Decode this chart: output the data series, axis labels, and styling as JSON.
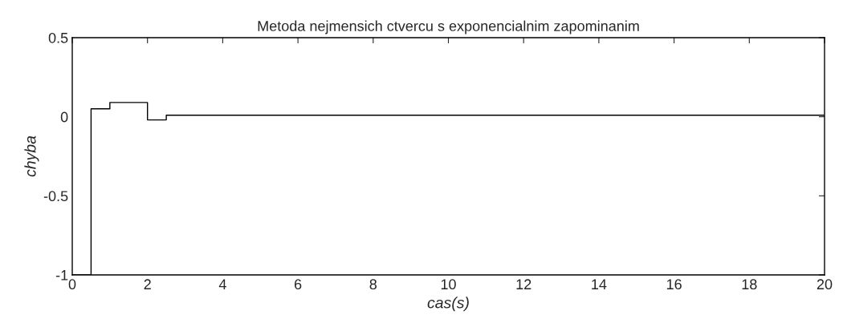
{
  "chart_data": {
    "type": "step",
    "title": "Metoda nejmensich ctvercu s exponencialnim zapominanim",
    "xlabel": "cas(s)",
    "ylabel": "chyba",
    "x": [
      0,
      0.5,
      1,
      2,
      2.5,
      20
    ],
    "series": [
      {
        "color": "#000000",
        "values": [
          -1,
          0.05,
          0.09,
          -0.02,
          0.01,
          0.01
        ]
      }
    ],
    "xlim": [
      0,
      20
    ],
    "xticks": [
      0,
      2,
      4,
      6,
      8,
      10,
      12,
      14,
      16,
      18,
      20
    ],
    "ylim": [
      -1,
      0.5
    ],
    "yticks": [
      -1,
      -0.5,
      0,
      0.5
    ],
    "grid": false,
    "legend": false
  }
}
